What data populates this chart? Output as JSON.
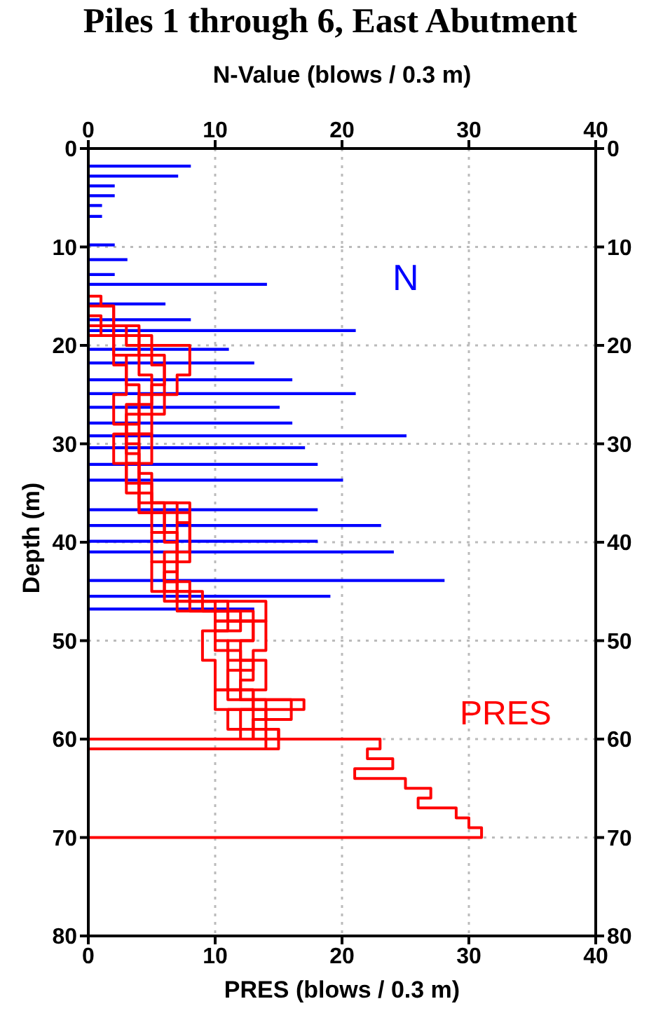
{
  "chart_data": {
    "type": "bar",
    "orientation": "horizontal",
    "title": "Piles 1 through 6, East Abutment",
    "xlabel": "PRES  (blows / 0.3 m)",
    "x2label": "N-Value  (blows / 0.3 m)",
    "ylabel": "Depth  (m)",
    "xlim": [
      0,
      40
    ],
    "xticks": [
      0,
      10,
      20,
      30,
      40
    ],
    "x2lim": [
      0,
      40
    ],
    "x2ticks": [
      0,
      10,
      20,
      30,
      40
    ],
    "ylim": [
      80,
      0
    ],
    "yticks": [
      0,
      10,
      20,
      30,
      40,
      50,
      60,
      70,
      80
    ],
    "y2lim": [
      80,
      0
    ],
    "y2ticks": [
      0,
      10,
      20,
      30,
      40,
      50,
      60,
      70,
      80
    ],
    "grid": true,
    "series": [
      {
        "name": "N",
        "color": "#0000ff",
        "x": [
          1.8,
          2.8,
          3.8,
          4.8,
          5.8,
          6.9,
          9.8,
          11.3,
          12.8,
          13.8,
          15.8,
          17.4,
          18.5,
          20.4,
          21.8,
          23.5,
          24.9,
          26.3,
          27.9,
          29.2,
          30.4,
          32.1,
          33.7,
          36.7,
          38.3,
          39.9,
          41,
          43.9,
          45.5,
          46.8
        ],
        "values": [
          8,
          7,
          2,
          2,
          1,
          1,
          2,
          3,
          2,
          14,
          6,
          8,
          21,
          11,
          13,
          16,
          21,
          15,
          16,
          25,
          17,
          18,
          20,
          18,
          23,
          18,
          24,
          28,
          19,
          13
        ]
      },
      {
        "type": "step",
        "name": "PRES",
        "color": "#ff0000",
        "x": [
          15,
          15,
          16,
          18,
          21,
          24,
          27,
          30,
          33,
          36,
          39,
          42,
          45,
          47,
          49,
          51,
          53,
          55,
          57,
          59,
          60,
          61,
          62,
          63,
          64,
          65,
          66,
          67,
          68,
          69,
          70
        ],
        "values": [
          0,
          1,
          2,
          4,
          3,
          4,
          3,
          4,
          4,
          6,
          5,
          7,
          9,
          11,
          10,
          12,
          11,
          13,
          14,
          15,
          23,
          22,
          24,
          21,
          25,
          27,
          26,
          29,
          30,
          31,
          0
        ]
      },
      {
        "type": "step",
        "color": "#ff0000",
        "x": [
          16,
          16,
          19,
          22,
          25,
          28,
          31,
          34,
          36,
          38,
          41,
          44,
          46,
          48,
          50,
          52,
          54,
          56,
          58,
          60,
          61
        ],
        "values": [
          0,
          2,
          5,
          6,
          4,
          3,
          4,
          5,
          7,
          8,
          6,
          7,
          10,
          13,
          11,
          13,
          12,
          14,
          13,
          15,
          0
        ]
      },
      {
        "type": "step",
        "color": "#ff0000",
        "x": [
          17,
          17,
          19,
          22,
          25,
          28,
          31,
          35,
          37,
          40,
          43,
          45,
          47,
          49,
          52,
          55,
          57,
          59,
          60
        ],
        "values": [
          0,
          1,
          2,
          3,
          2,
          3,
          3,
          4,
          6,
          7,
          6,
          8,
          12,
          9,
          10,
          13,
          12,
          15,
          0
        ]
      },
      {
        "type": "step",
        "color": "#ff0000",
        "x": [
          18,
          18,
          20,
          23,
          25,
          27,
          30,
          33,
          36,
          38,
          41,
          44,
          46,
          48,
          51,
          53,
          56,
          58,
          60,
          61
        ],
        "values": [
          0,
          3,
          8,
          7,
          6,
          4,
          4,
          5,
          8,
          7,
          7,
          6,
          11,
          14,
          13,
          12,
          16,
          13,
          14,
          0
        ]
      },
      {
        "type": "step",
        "color": "#ff0000",
        "x": [
          19,
          19,
          21,
          24,
          27,
          29,
          32,
          35,
          37,
          40,
          42,
          45,
          47,
          50,
          52,
          55,
          57,
          59,
          60
        ],
        "values": [
          0,
          4,
          6,
          5,
          5,
          2,
          4,
          5,
          8,
          8,
          5,
          7,
          13,
          12,
          14,
          10,
          13,
          12,
          0
        ]
      },
      {
        "type": "step",
        "color": "#ff0000",
        "x": [
          18,
          18,
          21,
          23,
          26,
          29,
          32,
          34,
          37,
          39,
          42,
          44,
          46,
          48,
          50,
          53,
          56,
          57,
          59,
          60
        ],
        "values": [
          0,
          2,
          4,
          5,
          3,
          5,
          3,
          4,
          5,
          7,
          6,
          8,
          14,
          10,
          11,
          11,
          17,
          11,
          14,
          0
        ]
      }
    ]
  }
}
